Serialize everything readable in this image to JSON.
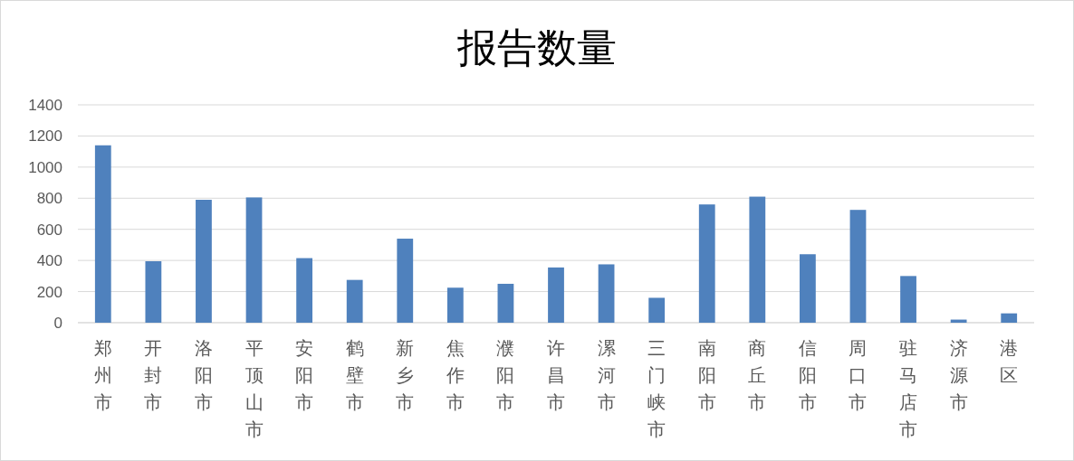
{
  "chart_data": {
    "type": "bar",
    "title": "报告数量",
    "categories": [
      "郑州市",
      "开封市",
      "洛阳市",
      "平顶山市",
      "安阳市",
      "鹤壁市",
      "新乡市",
      "焦作市",
      "濮阳市",
      "许昌市",
      "漯河市",
      "三门峡市",
      "南阳市",
      "商丘市",
      "信阳市",
      "周口市",
      "驻马店市",
      "济源市",
      "港区"
    ],
    "values": [
      1140,
      395,
      790,
      805,
      415,
      275,
      540,
      225,
      250,
      355,
      375,
      160,
      760,
      810,
      440,
      725,
      300,
      20,
      60
    ],
    "color": "#4f81bd",
    "ylim": [
      0,
      1400
    ],
    "yticks": [
      0,
      200,
      400,
      600,
      800,
      1000,
      1200,
      1400
    ],
    "grid": "y"
  }
}
